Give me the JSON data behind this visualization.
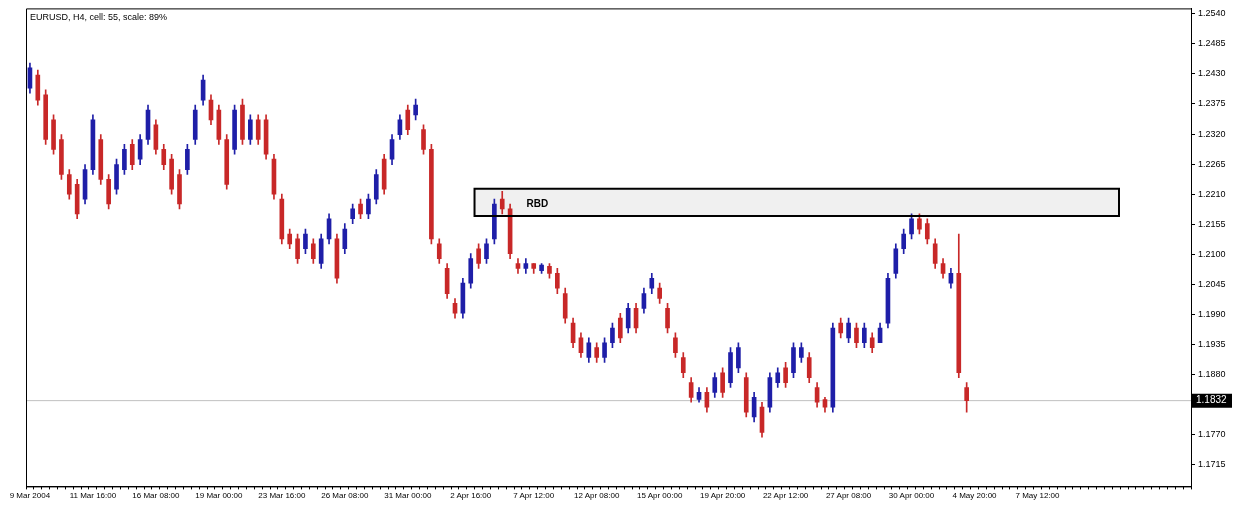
{
  "chart_data": {
    "type": "candlestick",
    "title": "EURUSD, H4, cell: 55, scale: 89%",
    "categories": [
      "9 Mar 2004",
      null,
      null,
      null,
      null,
      null,
      null,
      null,
      "11 Mar 16:00",
      null,
      null,
      null,
      null,
      null,
      null,
      null,
      "16 Mar 08:00",
      null,
      null,
      null,
      null,
      null,
      null,
      null,
      "19 Mar 00:00",
      null,
      null,
      null,
      null,
      null,
      null,
      null,
      "23 Mar 16:00",
      null,
      null,
      null,
      null,
      null,
      null,
      null,
      "26 Mar 08:00",
      null,
      null,
      null,
      null,
      null,
      null,
      null,
      "31 Mar 00:00",
      null,
      null,
      null,
      null,
      null,
      null,
      null,
      "2 Apr 16:00",
      null,
      null,
      null,
      null,
      null,
      null,
      null,
      "7 Apr 12:00",
      null,
      null,
      null,
      null,
      null,
      null,
      null,
      "12 Apr 08:00",
      null,
      null,
      null,
      null,
      null,
      null,
      null,
      "15 Apr 00:00",
      null,
      null,
      null,
      null,
      null,
      null,
      null,
      "19 Apr 20:00",
      null,
      null,
      null,
      null,
      null,
      null,
      null,
      "22 Apr 12:00",
      null,
      null,
      null,
      null,
      null,
      null,
      null,
      "27 Apr 08:00",
      null,
      null,
      null,
      null,
      null,
      null,
      null,
      "30 Apr 00:00",
      null,
      null,
      null,
      null,
      null,
      null,
      null,
      "4 May 20:00",
      null,
      null,
      null,
      null,
      null,
      null,
      null,
      "7 May 12:00",
      null,
      null,
      null,
      null,
      null,
      null,
      null,
      null,
      null,
      null,
      null,
      null,
      null,
      null,
      null,
      null,
      null,
      null,
      null
    ],
    "ohlc": [
      [
        1.2404,
        1.245,
        1.2395,
        1.2441
      ],
      [
        1.2428,
        1.2437,
        1.2373,
        1.2382
      ],
      [
        1.2392,
        1.2401,
        1.2301,
        1.231
      ],
      [
        1.2346,
        1.2355,
        1.2283,
        1.2292
      ],
      [
        1.231,
        1.2319,
        1.2237,
        1.2246
      ],
      [
        1.2246,
        1.2255,
        1.2201,
        1.221
      ],
      [
        1.2228,
        1.2237,
        1.2165,
        1.2174
      ],
      [
        1.2201,
        1.2264,
        1.2192,
        1.2255
      ],
      [
        1.2255,
        1.2355,
        1.2246,
        1.2346
      ],
      [
        1.231,
        1.2319,
        1.2228,
        1.2237
      ],
      [
        1.2237,
        1.2246,
        1.2183,
        1.2192
      ],
      [
        1.2219,
        1.2274,
        1.221,
        1.2264
      ],
      [
        1.2255,
        1.2301,
        1.2246,
        1.2292
      ],
      [
        1.2301,
        1.231,
        1.2255,
        1.2264
      ],
      [
        1.2274,
        1.2319,
        1.2264,
        1.231
      ],
      [
        1.231,
        1.2373,
        1.2301,
        1.2364
      ],
      [
        1.2337,
        1.2346,
        1.2283,
        1.2292
      ],
      [
        1.2292,
        1.2301,
        1.2255,
        1.2264
      ],
      [
        1.2274,
        1.2283,
        1.221,
        1.2219
      ],
      [
        1.2246,
        1.2255,
        1.2183,
        1.2192
      ],
      [
        1.2255,
        1.2301,
        1.2246,
        1.2292
      ],
      [
        1.231,
        1.2373,
        1.2301,
        1.2364
      ],
      [
        1.2382,
        1.2428,
        1.2373,
        1.2419
      ],
      [
        1.2382,
        1.2392,
        1.2337,
        1.2346
      ],
      [
        1.2364,
        1.2373,
        1.2301,
        1.231
      ],
      [
        1.231,
        1.2319,
        1.2219,
        1.2228
      ],
      [
        1.2292,
        1.2373,
        1.2283,
        1.2364
      ],
      [
        1.2373,
        1.2384,
        1.2301,
        1.231
      ],
      [
        1.231,
        1.2355,
        1.2301,
        1.2346
      ],
      [
        1.2346,
        1.2355,
        1.2301,
        1.231
      ],
      [
        1.2346,
        1.2355,
        1.2274,
        1.2283
      ],
      [
        1.2274,
        1.2283,
        1.2201,
        1.221
      ],
      [
        1.2201,
        1.221,
        1.2119,
        1.2128
      ],
      [
        1.2137,
        1.2146,
        1.211,
        1.2119
      ],
      [
        1.2128,
        1.2137,
        1.2083,
        1.2092
      ],
      [
        1.211,
        1.2146,
        1.2101,
        1.2137
      ],
      [
        1.2119,
        1.2128,
        1.2083,
        1.2092
      ],
      [
        1.2083,
        1.2137,
        1.2074,
        1.2128
      ],
      [
        1.2128,
        1.2174,
        1.2119,
        1.2165
      ],
      [
        1.2128,
        1.2137,
        1.2047,
        1.2056
      ],
      [
        1.211,
        1.2156,
        1.2101,
        1.2146
      ],
      [
        1.2165,
        1.2192,
        1.2156,
        1.2183
      ],
      [
        1.2192,
        1.2201,
        1.2165,
        1.2174
      ],
      [
        1.2174,
        1.221,
        1.2165,
        1.2201
      ],
      [
        1.2201,
        1.2255,
        1.2192,
        1.2246
      ],
      [
        1.2274,
        1.2283,
        1.221,
        1.2219
      ],
      [
        1.2274,
        1.2319,
        1.2264,
        1.231
      ],
      [
        1.2319,
        1.2355,
        1.231,
        1.2346
      ],
      [
        1.2364,
        1.2373,
        1.2319,
        1.2328
      ],
      [
        1.2355,
        1.2384,
        1.2346,
        1.2373
      ],
      [
        1.2328,
        1.2337,
        1.2283,
        1.2292
      ],
      [
        1.2292,
        1.2301,
        1.2119,
        1.2128
      ],
      [
        1.2119,
        1.2128,
        1.2083,
        1.2092
      ],
      [
        1.2074,
        1.2083,
        1.2019,
        1.2028
      ],
      [
        1.201,
        1.2019,
        1.1983,
        1.1992
      ],
      [
        1.1992,
        1.2056,
        1.1983,
        1.2047
      ],
      [
        1.2047,
        1.2101,
        1.2038,
        1.2092
      ],
      [
        1.211,
        1.2119,
        1.2074,
        1.2083
      ],
      [
        1.2092,
        1.2128,
        1.2083,
        1.2119
      ],
      [
        1.2128,
        1.2201,
        1.2119,
        1.2192
      ],
      [
        1.2201,
        1.2215,
        1.2174,
        1.2183
      ],
      [
        1.2183,
        1.2192,
        1.2092,
        1.2101
      ],
      [
        1.2083,
        1.2092,
        1.2065,
        1.2074
      ],
      [
        1.2074,
        1.2092,
        1.2065,
        1.2083
      ],
      [
        1.2083,
        1.2083,
        1.2065,
        1.2074
      ],
      [
        1.207,
        1.2083,
        1.2065,
        1.208
      ],
      [
        1.2078,
        1.2083,
        1.2056,
        1.2065
      ],
      [
        1.2065,
        1.2074,
        1.2028,
        1.2038
      ],
      [
        1.2028,
        1.2038,
        1.1974,
        1.1983
      ],
      [
        1.1974,
        1.1983,
        1.1929,
        1.1938
      ],
      [
        1.1947,
        1.1956,
        1.1911,
        1.192
      ],
      [
        1.1911,
        1.1947,
        1.1902,
        1.1938
      ],
      [
        1.1929,
        1.1938,
        1.1902,
        1.1911
      ],
      [
        1.1911,
        1.1947,
        1.1902,
        1.1938
      ],
      [
        1.1938,
        1.1974,
        1.1929,
        1.1965
      ],
      [
        1.1983,
        1.1992,
        1.1938,
        1.1947
      ],
      [
        1.1965,
        1.201,
        1.1956,
        1.2001
      ],
      [
        1.2001,
        1.201,
        1.1956,
        1.1965
      ],
      [
        1.2001,
        1.2038,
        1.1992,
        1.2028
      ],
      [
        1.2038,
        1.2065,
        1.2028,
        1.2056
      ],
      [
        1.2038,
        1.2047,
        1.201,
        1.2019
      ],
      [
        1.2001,
        1.201,
        1.1956,
        1.1965
      ],
      [
        1.1947,
        1.1956,
        1.1911,
        1.192
      ],
      [
        1.1911,
        1.192,
        1.1874,
        1.1883
      ],
      [
        1.1865,
        1.1874,
        1.1829,
        1.1838
      ],
      [
        1.1834,
        1.1856,
        1.1829,
        1.1847
      ],
      [
        1.1847,
        1.1856,
        1.1811,
        1.182
      ],
      [
        1.1847,
        1.1883,
        1.1838,
        1.1874
      ],
      [
        1.1883,
        1.1892,
        1.1838,
        1.1847
      ],
      [
        1.1865,
        1.1929,
        1.1856,
        1.192
      ],
      [
        1.1892,
        1.1938,
        1.1883,
        1.1929
      ],
      [
        1.1874,
        1.1883,
        1.1802,
        1.1811
      ],
      [
        1.1802,
        1.1847,
        1.1793,
        1.1838
      ],
      [
        1.182,
        1.1829,
        1.1765,
        1.1774
      ],
      [
        1.182,
        1.1883,
        1.1811,
        1.1874
      ],
      [
        1.1865,
        1.1892,
        1.1856,
        1.1883
      ],
      [
        1.1892,
        1.1902,
        1.1856,
        1.1865
      ],
      [
        1.1883,
        1.1938,
        1.1874,
        1.1929
      ],
      [
        1.1911,
        1.1938,
        1.1902,
        1.1929
      ],
      [
        1.1911,
        1.192,
        1.1865,
        1.1874
      ],
      [
        1.1856,
        1.1865,
        1.182,
        1.1829
      ],
      [
        1.1834,
        1.1838,
        1.1811,
        1.182
      ],
      [
        1.182,
        1.1974,
        1.1811,
        1.1965
      ],
      [
        1.1974,
        1.1983,
        1.1947,
        1.1956
      ],
      [
        1.1947,
        1.1983,
        1.1938,
        1.1974
      ],
      [
        1.1965,
        1.1974,
        1.1929,
        1.1938
      ],
      [
        1.1938,
        1.1974,
        1.1929,
        1.1965
      ],
      [
        1.1947,
        1.1956,
        1.192,
        1.1929
      ],
      [
        1.1938,
        1.1974,
        1.1938,
        1.1965
      ],
      [
        1.1974,
        1.2065,
        1.1965,
        1.2056
      ],
      [
        1.2065,
        1.2119,
        1.2056,
        1.211
      ],
      [
        1.211,
        1.2146,
        1.2101,
        1.2137
      ],
      [
        1.2137,
        1.2174,
        1.2128,
        1.2165
      ],
      [
        1.2165,
        1.2174,
        1.2137,
        1.2146
      ],
      [
        1.2156,
        1.2165,
        1.2119,
        1.2128
      ],
      [
        1.2119,
        1.2128,
        1.2074,
        1.2083
      ],
      [
        1.2083,
        1.2092,
        1.2056,
        1.2065
      ],
      [
        1.2047,
        1.2074,
        1.2038,
        1.2065
      ],
      [
        1.2065,
        1.2137,
        1.1874,
        1.1883
      ],
      [
        1.1856,
        1.1865,
        1.1811,
        1.1832
      ],
      null,
      null,
      null,
      null,
      null,
      null,
      null,
      null,
      null,
      null,
      null,
      null,
      null,
      null,
      null,
      null,
      null,
      null,
      null,
      null,
      null,
      null,
      null,
      null,
      null,
      null,
      null,
      null
    ],
    "colors": [
      "#1f1fa8",
      "#c82828",
      "#c82828",
      "#c82828",
      "#c82828",
      "#c82828",
      "#c82828",
      "#1f1fa8",
      "#1f1fa8",
      "#c82828",
      "#c82828",
      "#1f1fa8",
      "#1f1fa8",
      "#c82828",
      "#1f1fa8",
      "#1f1fa8",
      "#c82828",
      "#c82828",
      "#c82828",
      "#c82828",
      "#1f1fa8",
      "#1f1fa8",
      "#1f1fa8",
      "#c82828",
      "#c82828",
      "#c82828",
      "#1f1fa8",
      "#c82828",
      "#1f1fa8",
      "#c82828",
      "#c82828",
      "#c82828",
      "#c82828",
      "#c82828",
      "#c82828",
      "#1f1fa8",
      "#c82828",
      "#1f1fa8",
      "#1f1fa8",
      "#c82828",
      "#1f1fa8",
      "#1f1fa8",
      "#c82828",
      "#1f1fa8",
      "#1f1fa8",
      "#c82828",
      "#1f1fa8",
      "#1f1fa8",
      "#c82828",
      "#1f1fa8",
      "#c82828",
      "#c82828",
      "#c82828",
      "#c82828",
      "#c82828",
      "#1f1fa8",
      "#1f1fa8",
      "#c82828",
      "#1f1fa8",
      "#1f1fa8",
      "#c82828",
      "#c82828",
      "#c82828",
      "#1f1fa8",
      "#c82828",
      "#1f1fa8",
      "#c82828",
      "#c82828",
      "#c82828",
      "#c82828",
      "#c82828",
      "#1f1fa8",
      "#c82828",
      "#1f1fa8",
      "#1f1fa8",
      "#c82828",
      "#1f1fa8",
      "#c82828",
      "#1f1fa8",
      "#1f1fa8",
      "#c82828",
      "#c82828",
      "#c82828",
      "#c82828",
      "#c82828",
      "#1f1fa8",
      "#c82828",
      "#1f1fa8",
      "#c82828",
      "#1f1fa8",
      "#1f1fa8",
      "#c82828",
      "#1f1fa8",
      "#c82828",
      "#1f1fa8",
      "#1f1fa8",
      "#c82828",
      "#1f1fa8",
      "#1f1fa8",
      "#c82828",
      "#c82828",
      "#c82828",
      "#1f1fa8",
      "#c82828",
      "#1f1fa8",
      "#c82828",
      "#1f1fa8",
      "#c82828",
      "#1f1fa8",
      "#1f1fa8",
      "#1f1fa8",
      "#1f1fa8",
      "#1f1fa8",
      "#c82828",
      "#c82828",
      "#c82828",
      "#c82828",
      "#1f1fa8",
      "#c82828",
      "#c82828",
      null,
      null,
      null,
      null,
      null,
      null,
      null,
      null,
      null,
      null,
      null,
      null,
      null,
      null,
      null,
      null,
      null,
      null,
      null,
      null,
      null,
      null,
      null,
      null,
      null,
      null,
      null,
      null
    ],
    "ylim": [
      1.1675,
      1.255
    ],
    "yticks": [
      {
        "value": 1.254,
        "label": "1.2540"
      },
      1.2485,
      {
        "value": 1.243,
        "label": "1.2430"
      },
      1.2375,
      {
        "value": 1.232,
        "label": "1.2320"
      },
      1.2265,
      {
        "value": 1.221,
        "label": "1.2210"
      },
      1.2155,
      {
        "value": 1.21,
        "label": "1.2100"
      },
      1.2045,
      {
        "value": 1.199,
        "label": "1.1990"
      },
      1.1935,
      {
        "value": 1.188,
        "label": "1.1880"
      },
      {
        "value": 1.177,
        "label": "1.1770"
      },
      1.1715
    ],
    "ref_lines": [
      {
        "axis": "y",
        "value": 1.1832,
        "label": "1.1832",
        "color": "#c0c0c0"
      }
    ],
    "bands": [
      {
        "axis": "y",
        "from": 1.217,
        "to": 1.222,
        "label": "RBD",
        "color": "#f0f0f0"
      }
    ]
  }
}
